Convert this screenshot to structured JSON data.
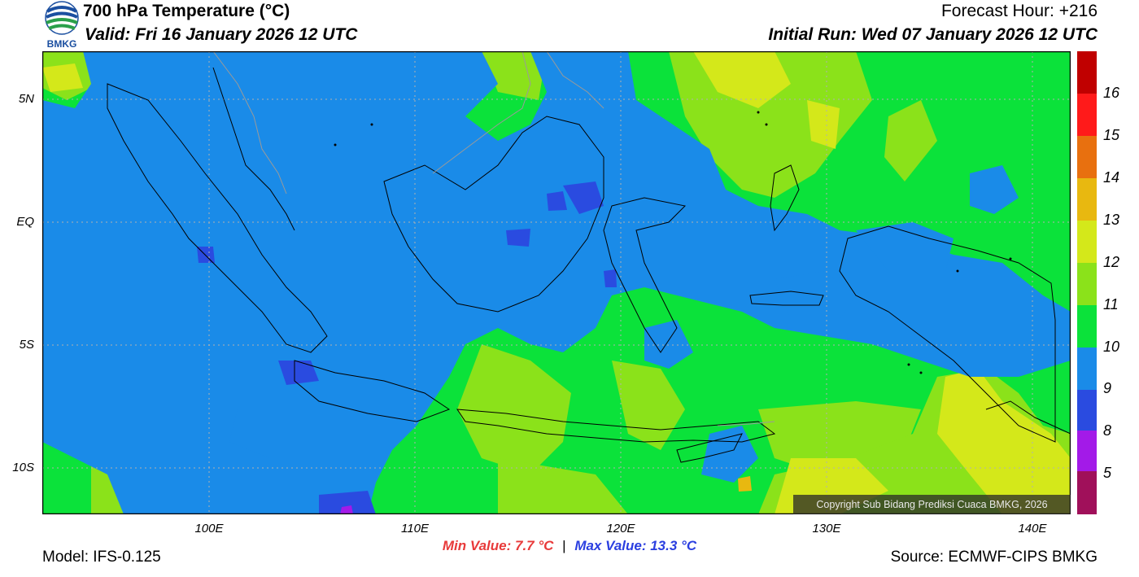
{
  "header": {
    "title": "700 hPa Temperature (°C)",
    "valid": "Valid: Fri 16 January 2026 12 UTC",
    "forecast_hour": "Forecast Hour: +216",
    "initial_run": "Initial Run: Wed 07 January 2026 12 UTC",
    "logo_text": "BMKG"
  },
  "map": {
    "region": "Indonesia",
    "lat_labels": [
      "5N",
      "EQ",
      "5S",
      "10S"
    ],
    "lon_labels": [
      "100E",
      "110E",
      "120E",
      "130E",
      "140E"
    ],
    "copyright": "Copyright Sub Bidang Prediksi Cuaca BMKG, 2026",
    "colors": {
      "background_field": "#0be23a",
      "cool_field": "#1a8be8",
      "warm_field": "#8be21a",
      "coast": "#000000",
      "border_gray": "#9a9a9a"
    }
  },
  "legend": {
    "labels": [
      "16",
      "15",
      "14",
      "13",
      "12",
      "11",
      "10",
      "9",
      "8",
      "5"
    ],
    "colors": [
      "#c00000",
      "#e00000",
      "#ff1a1a",
      "#e8700f",
      "#e8b810",
      "#d4e81a",
      "#8be21a",
      "#0be23a",
      "#1a8be8",
      "#2a4be0",
      "#a31ae8",
      "#a0105a"
    ]
  },
  "stats": {
    "min": "Min Value: 7.7 °C",
    "max": "Max Value: 13.3 °C",
    "separator": "|"
  },
  "footer": {
    "model": "Model: IFS-0.125",
    "source": "Source: ECMWF-CIPS BMKG"
  }
}
